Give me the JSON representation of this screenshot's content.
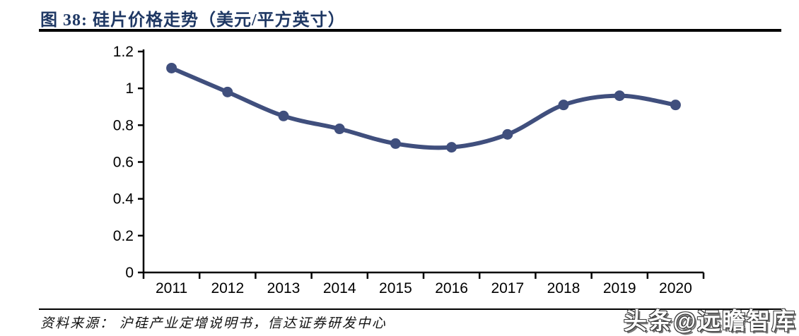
{
  "figure": {
    "title": "图 38:  硅片价格走势（美元/平方英寸）",
    "source": "资料来源：  沪硅产业定增说明书，信达证券研发中心",
    "watermark": "头条@远瞻智库"
  },
  "colors": {
    "title_text": "#1f3864",
    "series_line": "#404f7d",
    "axis": "#000000",
    "rule": "#000000",
    "tick_label": "#000000"
  },
  "chart_data": {
    "type": "line",
    "title": "硅片价格走势（美元/平方英寸）",
    "categories": [
      "2011",
      "2012",
      "2013",
      "2014",
      "2015",
      "2016",
      "2017",
      "2018",
      "2019",
      "2020"
    ],
    "values": [
      1.11,
      0.98,
      0.85,
      0.78,
      0.7,
      0.68,
      0.75,
      0.91,
      0.96,
      0.91
    ],
    "series_name": "硅片价格",
    "xlabel": "",
    "ylabel": "",
    "ylim": [
      0,
      1.2
    ],
    "ytick_interval": 0.2,
    "ytick_labels": [
      "0",
      "0.2",
      "0.4",
      "0.6",
      "0.8",
      "1",
      "1.2"
    ],
    "grid": false,
    "legend_position": "none",
    "smooth_line": true,
    "markers": "circle"
  }
}
